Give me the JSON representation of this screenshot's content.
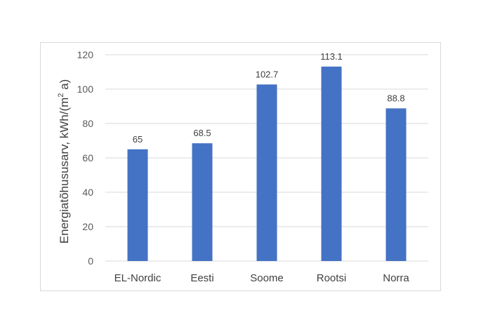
{
  "chart_data": {
    "type": "bar",
    "title": "",
    "xlabel": "",
    "ylabel": "Energiatõhususarv, kWh/(m",
    "ylabel_sup": "2",
    "ylabel_tail": " a)",
    "categories": [
      "EL-Nordic",
      "Eesti",
      "Soome",
      "Rootsi",
      "Norra"
    ],
    "values": [
      65,
      68.5,
      102.7,
      113.1,
      88.8
    ],
    "value_labels": [
      "65",
      "68.5",
      "102.7",
      "113.1",
      "88.8"
    ],
    "ylim": [
      0,
      120
    ],
    "yticks": [
      0,
      20,
      40,
      60,
      80,
      100,
      120
    ],
    "grid": true,
    "legend": "none",
    "bar_color": "#4472c4",
    "grid_color": "#d9d9d9"
  }
}
